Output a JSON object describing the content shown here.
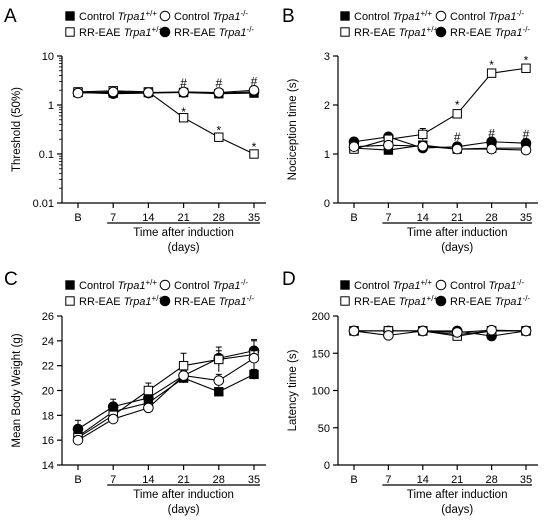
{
  "legend": {
    "entries": [
      {
        "key": "ctrl_wt",
        "label": "Control ",
        "gene": "Trpa1",
        "sup": "+/+",
        "marker": "filled-square"
      },
      {
        "key": "ctrl_ko",
        "label": "Control ",
        "gene": "Trpa1",
        "sup": "-/-",
        "marker": "open-circle"
      },
      {
        "key": "eae_wt",
        "label": "RR-EAE ",
        "gene": "Trpa1",
        "sup": "+/+",
        "marker": "open-square"
      },
      {
        "key": "eae_ko",
        "label": "RR-EAE ",
        "gene": "Trpa1",
        "sup": "-/-",
        "marker": "filled-circle"
      }
    ]
  },
  "chart_data": [
    {
      "panel": "A",
      "type": "line",
      "categories": [
        "B",
        "7",
        "14",
        "21",
        "28",
        "35"
      ],
      "xlabel": "Time after induction",
      "xlabel_units": "(days)",
      "ylabel": "Threshold (50%)",
      "yscale": "log",
      "ylim": [
        0.01,
        10
      ],
      "yticks": [
        0.01,
        0.1,
        1,
        10
      ],
      "ytick_labels": [
        "0.01",
        "0.1",
        "1",
        "10"
      ],
      "series": [
        {
          "key": "ctrl_wt",
          "values": [
            1.8,
            1.75,
            1.8,
            1.8,
            1.7,
            1.75
          ],
          "err": [
            0.1,
            0.1,
            0.1,
            0.1,
            0.1,
            0.1
          ]
        },
        {
          "key": "ctrl_ko",
          "values": [
            1.75,
            1.85,
            1.8,
            1.85,
            1.8,
            2.0
          ],
          "err": [
            0.1,
            0.1,
            0.1,
            0.1,
            0.1,
            0.1
          ]
        },
        {
          "key": "eae_wt",
          "values": [
            1.85,
            1.95,
            1.85,
            0.55,
            0.22,
            0.1
          ],
          "err": [
            0.1,
            0.1,
            0.1,
            0.08,
            0.03,
            0.015
          ]
        },
        {
          "key": "eae_ko",
          "values": [
            1.8,
            1.7,
            1.75,
            1.8,
            1.75,
            1.85
          ],
          "err": [
            0.1,
            0.1,
            0.1,
            0.1,
            0.1,
            0.1
          ]
        }
      ],
      "annotations": [
        {
          "text": "#",
          "x": "21",
          "y": 2.8
        },
        {
          "text": "#",
          "x": "28",
          "y": 2.8
        },
        {
          "text": "#",
          "x": "35",
          "y": 3.0
        },
        {
          "text": "*",
          "x": "21",
          "y": 0.72
        },
        {
          "text": "*",
          "x": "28",
          "y": 0.3
        },
        {
          "text": "*",
          "x": "35",
          "y": 0.14
        }
      ]
    },
    {
      "panel": "B",
      "type": "line",
      "categories": [
        "B",
        "7",
        "14",
        "21",
        "28",
        "35"
      ],
      "xlabel": "Time after induction",
      "xlabel_units": "(days)",
      "ylabel": "Nociception time (s)",
      "yscale": "linear",
      "ylim": [
        0,
        3
      ],
      "yticks": [
        0,
        1,
        2,
        3
      ],
      "ytick_labels": [
        "0",
        "1",
        "2",
        "3"
      ],
      "series": [
        {
          "key": "ctrl_wt",
          "values": [
            1.12,
            1.08,
            1.18,
            1.1,
            1.12,
            1.12
          ],
          "err": [
            0.05,
            0.05,
            0.05,
            0.04,
            0.04,
            0.04
          ]
        },
        {
          "key": "ctrl_ko",
          "values": [
            1.15,
            1.18,
            1.16,
            1.1,
            1.1,
            1.08
          ],
          "err": [
            0.05,
            0.05,
            0.05,
            0.04,
            0.04,
            0.04
          ]
        },
        {
          "key": "eae_wt",
          "values": [
            1.1,
            1.3,
            1.4,
            1.82,
            2.65,
            2.75
          ],
          "err": [
            0.05,
            0.08,
            0.12,
            0.06,
            0.07,
            0.06
          ]
        },
        {
          "key": "eae_ko",
          "values": [
            1.25,
            1.35,
            1.12,
            1.15,
            1.25,
            1.22
          ],
          "err": [
            0.05,
            0.06,
            0.05,
            0.04,
            0.04,
            0.04
          ]
        }
      ],
      "annotations": [
        {
          "text": "*",
          "x": "21",
          "y": 2.0
        },
        {
          "text": "*",
          "x": "28",
          "y": 2.82
        },
        {
          "text": "*",
          "x": "35",
          "y": 2.91
        },
        {
          "text": "#",
          "x": "21",
          "y": 1.35
        },
        {
          "text": "#",
          "x": "28",
          "y": 1.42
        },
        {
          "text": "#",
          "x": "35",
          "y": 1.4
        }
      ]
    },
    {
      "panel": "C",
      "type": "line",
      "categories": [
        "B",
        "7",
        "14",
        "21",
        "28",
        "35"
      ],
      "xlabel": "Time after induction",
      "xlabel_units": "(days)",
      "ylabel": "Mean Body Weight (g)",
      "yscale": "linear",
      "ylim": [
        14,
        26
      ],
      "yticks": [
        14,
        16,
        18,
        20,
        22,
        24,
        26
      ],
      "ytick_labels": [
        "14",
        "16",
        "18",
        "20",
        "22",
        "24",
        "26"
      ],
      "series": [
        {
          "key": "ctrl_wt",
          "values": [
            16.3,
            18.3,
            19.0,
            21.0,
            19.9,
            21.3
          ],
          "err": [
            0.4,
            0.4,
            0.4,
            0.4,
            0.3,
            0.4
          ]
        },
        {
          "key": "ctrl_ko",
          "values": [
            16.0,
            17.7,
            18.6,
            21.2,
            20.8,
            22.6
          ],
          "err": [
            0.3,
            0.3,
            0.3,
            0.4,
            0.5,
            0.6
          ]
        },
        {
          "key": "eae_wt",
          "values": [
            16.2,
            18.0,
            20.0,
            22.0,
            22.5,
            22.9
          ],
          "err": [
            0.4,
            0.4,
            0.6,
            1.0,
            1.0,
            1.2
          ]
        },
        {
          "key": "eae_ko",
          "values": [
            16.9,
            18.7,
            19.4,
            21.2,
            22.6,
            23.2
          ],
          "err": [
            0.7,
            0.6,
            0.5,
            0.5,
            0.6,
            0.8
          ]
        }
      ]
    },
    {
      "panel": "D",
      "type": "line",
      "categories": [
        "B",
        "7",
        "14",
        "21",
        "28",
        "35"
      ],
      "xlabel": "Time after induction",
      "xlabel_units": "(days)",
      "ylabel": "Latency time (s)",
      "yscale": "linear",
      "ylim": [
        0,
        200
      ],
      "yticks": [
        0,
        50,
        100,
        150,
        200
      ],
      "ytick_labels": [
        "0",
        "50",
        "100",
        "150",
        "200"
      ],
      "series": [
        {
          "key": "ctrl_wt",
          "values": [
            180,
            180,
            180,
            175,
            180,
            180
          ],
          "err": [
            2,
            2,
            2,
            3,
            2,
            2
          ]
        },
        {
          "key": "ctrl_ko",
          "values": [
            180,
            174,
            180,
            178,
            181,
            180
          ],
          "err": [
            2,
            3,
            2,
            3,
            2,
            2
          ]
        },
        {
          "key": "eae_wt",
          "values": [
            180,
            180,
            180,
            173,
            180,
            180
          ],
          "err": [
            2,
            2,
            2,
            4,
            2,
            2
          ]
        },
        {
          "key": "eae_ko",
          "values": [
            180,
            180,
            180,
            180,
            173,
            180
          ],
          "err": [
            2,
            2,
            2,
            2,
            3,
            2
          ]
        }
      ]
    }
  ]
}
